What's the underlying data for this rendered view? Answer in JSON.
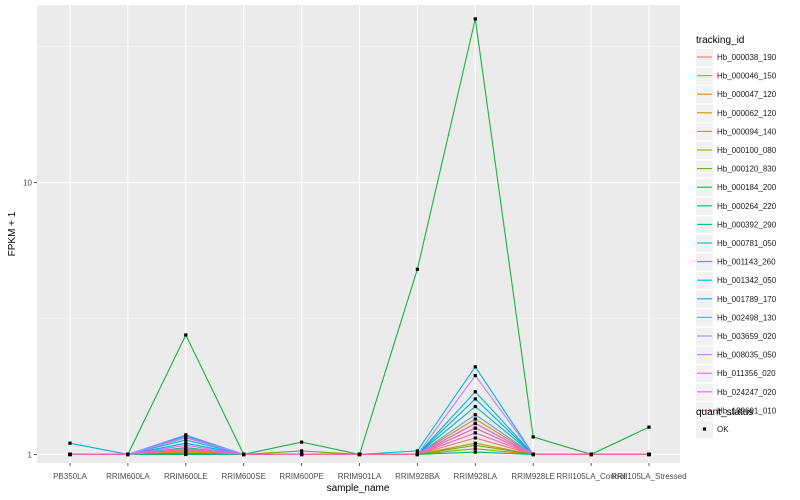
{
  "chart_data": {
    "type": "line",
    "xlabel": "sample_name",
    "ylabel": "FPKM + 1",
    "y_scale": "log10",
    "ylim": [
      0.93,
      45
    ],
    "y_ticks": [
      {
        "value": 1,
        "label": "1"
      },
      {
        "value": 10,
        "label": "10"
      }
    ],
    "grid": true,
    "categories": [
      "PB350LA",
      "RRIM600LA",
      "RRIM600LE",
      "RRIM600SE",
      "RRIM600PE",
      "RRIM901LA",
      "RRIM928BA",
      "RRIM928LA",
      "RRIM928LE",
      "RRII105LA_Control",
      "RRII105LA_Stressed"
    ],
    "category_labels": [
      "PB350LA",
      "RRIM600LA",
      "RRIM600LE",
      "RRIM600SE",
      "RRIM600PE",
      "RRIM901LA",
      "RRIM928BA",
      "RRIM928LA",
      "RRIM928LE",
      "RRII105LA_Control",
      "RRII105LA_Stressed"
    ],
    "legend_position": "right",
    "legend_title": "tracking_id",
    "shape_legend_title": "quant_status",
    "shape_legend_entries": [
      "OK"
    ],
    "series": [
      {
        "name": "Hb_000038_190",
        "color": "#F8766D",
        "values": [
          1,
          1,
          1.04,
          1,
          1,
          1,
          1,
          1.15,
          1,
          1,
          1
        ]
      },
      {
        "name": "Hb_000046_150",
        "color": "#EE8043",
        "values": [
          1,
          1,
          1.02,
          1,
          1,
          1,
          1,
          1.2,
          1,
          1,
          1
        ]
      },
      {
        "name": "Hb_000047_120",
        "color": "#E18A00",
        "values": [
          1,
          1,
          1.03,
          1,
          1,
          1,
          1,
          1.3,
          1,
          1,
          1
        ]
      },
      {
        "name": "Hb_000062_120",
        "color": "#CF9400",
        "values": [
          1,
          1,
          1.02,
          1,
          1,
          1,
          1,
          1.35,
          1,
          1,
          1
        ]
      },
      {
        "name": "Hb_000094_140",
        "color": "#B79F00",
        "values": [
          1,
          1,
          1.01,
          1,
          1,
          1,
          1,
          1.1,
          1,
          1,
          1
        ]
      },
      {
        "name": "Hb_000100_080",
        "color": "#9AA800",
        "values": [
          1,
          1,
          1,
          1,
          1,
          1,
          1,
          1.05,
          1,
          1,
          1
        ]
      },
      {
        "name": "Hb_000120_830",
        "color": "#6BB100",
        "values": [
          1,
          1,
          1,
          1,
          1.03,
          1,
          1,
          1.08,
          1,
          1,
          1
        ]
      },
      {
        "name": "Hb_000184_200",
        "color": "#1AB43E",
        "values": [
          1,
          1,
          2.75,
          1,
          1.11,
          1,
          4.8,
          40,
          1.16,
          1,
          1.26
        ]
      },
      {
        "name": "Hb_000264_220",
        "color": "#00B86B",
        "values": [
          1,
          1,
          1,
          1,
          1,
          1,
          1,
          1.02,
          1,
          1,
          1
        ]
      },
      {
        "name": "Hb_000392_290",
        "color": "#00BC8C",
        "values": [
          1,
          1,
          1.01,
          1,
          1,
          1,
          1,
          1.25,
          1,
          1,
          1
        ]
      },
      {
        "name": "Hb_000781_050",
        "color": "#00BFAA",
        "values": [
          1,
          1,
          1.06,
          1,
          1,
          1,
          1,
          1.5,
          1,
          1,
          1
        ]
      },
      {
        "name": "Hb_001143_260",
        "color": "#00BCC6",
        "values": [
          1,
          1,
          1.13,
          1,
          1,
          1,
          1,
          1.7,
          1,
          1,
          1
        ]
      },
      {
        "name": "Hb_001342_050",
        "color": "#00B5DE",
        "values": [
          1.1,
          1,
          1.17,
          1,
          1,
          1,
          1.03,
          2.1,
          1,
          1,
          1
        ]
      },
      {
        "name": "Hb_001789_170",
        "color": "#00A9F4",
        "values": [
          1,
          1,
          1.1,
          1,
          1,
          1,
          1,
          1.6,
          1,
          1,
          1
        ]
      },
      {
        "name": "Hb_002498_130",
        "color": "#619CFF",
        "values": [
          1,
          1,
          1.18,
          1,
          1,
          1,
          1,
          1.4,
          1,
          1,
          1
        ]
      },
      {
        "name": "Hb_003659_020",
        "color": "#A58AFF",
        "values": [
          1,
          1,
          1.16,
          1,
          1,
          1,
          1,
          1.3,
          1,
          1,
          1
        ]
      },
      {
        "name": "Hb_008035_050",
        "color": "#D277FF",
        "values": [
          1,
          1,
          1.15,
          1,
          1,
          1,
          1,
          1.95,
          1,
          1,
          1
        ]
      },
      {
        "name": "Hb_011356_020",
        "color": "#EE67E6",
        "values": [
          1,
          1,
          1.08,
          1,
          1,
          1,
          1,
          1.3,
          1,
          1,
          1
        ]
      },
      {
        "name": "Hb_024247_020",
        "color": "#FB61D7",
        "values": [
          1,
          1,
          1.05,
          1,
          1,
          1,
          1,
          1.2,
          1,
          1,
          1
        ]
      },
      {
        "name": "Hb_139691_010",
        "color": "#FF67A4",
        "values": [
          1,
          1,
          1.04,
          1,
          1,
          1,
          1,
          1.25,
          1,
          1,
          1
        ]
      }
    ]
  }
}
